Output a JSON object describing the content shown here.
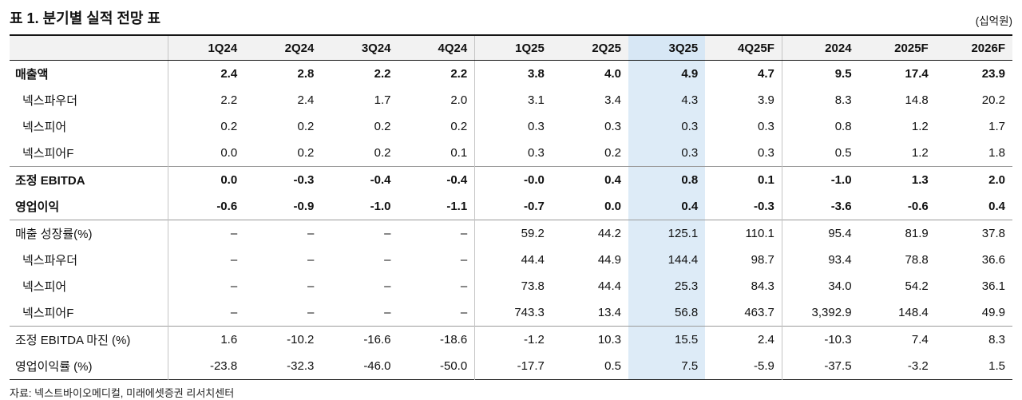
{
  "title": "표 1. 분기별 실적 전망 표",
  "unit": "(십억원)",
  "source": "자료: 넥스트바이오메디컬, 미래에셋증권 리서치센터",
  "colors": {
    "highlight": "#ddebf7",
    "highlight_header": "#d7e7f5",
    "header_bg": "#f2f2f2"
  },
  "table": {
    "columns": [
      "",
      "1Q24",
      "2Q24",
      "3Q24",
      "4Q24",
      "1Q25",
      "2Q25",
      "3Q25",
      "4Q25F",
      "2024",
      "2025F",
      "2026F"
    ],
    "highlight_column": "3Q25",
    "highlight_index": 7,
    "group_start_indices": [
      1,
      5,
      9
    ],
    "rows": [
      {
        "label": "매출액",
        "bold": true,
        "indent": false,
        "section": false,
        "values": [
          "2.4",
          "2.8",
          "2.2",
          "2.2",
          "3.8",
          "4.0",
          "4.9",
          "4.7",
          "9.5",
          "17.4",
          "23.9"
        ]
      },
      {
        "label": "넥스파우더",
        "bold": false,
        "indent": true,
        "section": false,
        "values": [
          "2.2",
          "2.4",
          "1.7",
          "2.0",
          "3.1",
          "3.4",
          "4.3",
          "3.9",
          "8.3",
          "14.8",
          "20.2"
        ]
      },
      {
        "label": "넥스피어",
        "bold": false,
        "indent": true,
        "section": false,
        "values": [
          "0.2",
          "0.2",
          "0.2",
          "0.2",
          "0.3",
          "0.3",
          "0.3",
          "0.3",
          "0.8",
          "1.2",
          "1.7"
        ]
      },
      {
        "label": "넥스피어F",
        "bold": false,
        "indent": true,
        "section": false,
        "values": [
          "0.0",
          "0.2",
          "0.2",
          "0.1",
          "0.3",
          "0.2",
          "0.3",
          "0.3",
          "0.5",
          "1.2",
          "1.8"
        ]
      },
      {
        "label": "조정 EBITDA",
        "bold": true,
        "indent": false,
        "section": true,
        "values": [
          "0.0",
          "-0.3",
          "-0.4",
          "-0.4",
          "-0.0",
          "0.4",
          "0.8",
          "0.1",
          "-1.0",
          "1.3",
          "2.0"
        ]
      },
      {
        "label": "영업이익",
        "bold": true,
        "indent": false,
        "section": false,
        "values": [
          "-0.6",
          "-0.9",
          "-1.0",
          "-1.1",
          "-0.7",
          "0.0",
          "0.4",
          "-0.3",
          "-3.6",
          "-0.6",
          "0.4"
        ]
      },
      {
        "label": "매출 성장률(%)",
        "bold": false,
        "indent": false,
        "section": true,
        "values": [
          "–",
          "–",
          "–",
          "–",
          "59.2",
          "44.2",
          "125.1",
          "110.1",
          "95.4",
          "81.9",
          "37.8"
        ]
      },
      {
        "label": "넥스파우더",
        "bold": false,
        "indent": true,
        "section": false,
        "values": [
          "–",
          "–",
          "–",
          "–",
          "44.4",
          "44.9",
          "144.4",
          "98.7",
          "93.4",
          "78.8",
          "36.6"
        ]
      },
      {
        "label": "넥스피어",
        "bold": false,
        "indent": true,
        "section": false,
        "values": [
          "–",
          "–",
          "–",
          "–",
          "73.8",
          "44.4",
          "25.3",
          "84.3",
          "34.0",
          "54.2",
          "36.1"
        ]
      },
      {
        "label": "넥스피어F",
        "bold": false,
        "indent": true,
        "section": false,
        "values": [
          "–",
          "–",
          "–",
          "–",
          "743.3",
          "13.4",
          "56.8",
          "463.7",
          "3,392.9",
          "148.4",
          "49.9"
        ]
      },
      {
        "label": "조정 EBITDA 마진 (%)",
        "bold": false,
        "indent": false,
        "section": true,
        "values": [
          "1.6",
          "-10.2",
          "-16.6",
          "-18.6",
          "-1.2",
          "10.3",
          "15.5",
          "2.4",
          "-10.3",
          "7.4",
          "8.3"
        ]
      },
      {
        "label": "영업이익률 (%)",
        "bold": false,
        "indent": false,
        "section": false,
        "values": [
          "-23.8",
          "-32.3",
          "-46.0",
          "-50.0",
          "-17.7",
          "0.5",
          "7.5",
          "-5.9",
          "-37.5",
          "-3.2",
          "1.5"
        ]
      }
    ]
  }
}
